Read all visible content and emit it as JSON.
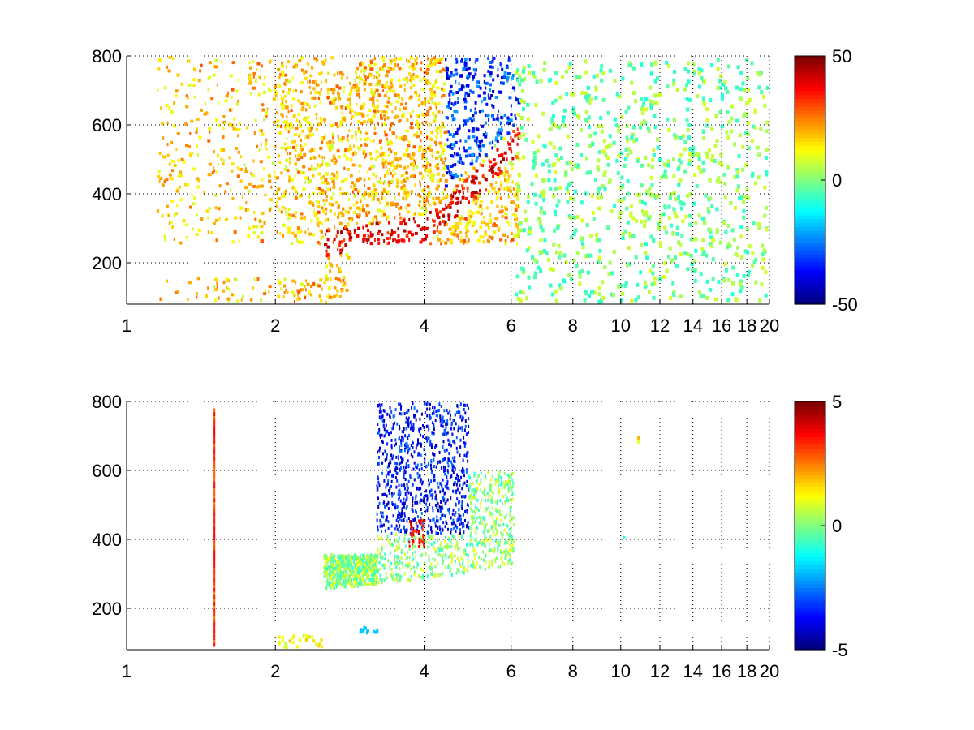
{
  "chart_data": [
    {
      "type": "heatmap",
      "title": "",
      "xlabel": "",
      "ylabel": "",
      "xlim": [
        1,
        20
      ],
      "ylim": [
        80,
        800
      ],
      "x_scale": "log",
      "xticks": [
        1,
        2,
        4,
        6,
        8,
        10,
        12,
        14,
        16,
        18,
        20
      ],
      "yticks": [
        200,
        400,
        600,
        800
      ],
      "grid": true,
      "colormap": "jet",
      "colorbar": {
        "min": -50,
        "max": 50,
        "ticks": [
          -50,
          0,
          50
        ]
      },
      "regions": [
        {
          "name": "",
          "x_center": 4.0,
          "y_center": 330,
          "value": 40
        },
        {
          "name": "",
          "x_center": 3.4,
          "y_center": 500,
          "value": 15
        },
        {
          "name": "",
          "x_center": 5.3,
          "y_center": 450,
          "value": -35
        },
        {
          "name": "",
          "x_center": 10.0,
          "y_center": 450,
          "value": 2
        }
      ]
    },
    {
      "type": "heatmap",
      "title": "",
      "xlabel": "",
      "ylabel": "",
      "xlim": [
        1,
        20
      ],
      "ylim": [
        80,
        800
      ],
      "x_scale": "log",
      "xticks": [
        1,
        2,
        4,
        6,
        8,
        10,
        12,
        14,
        16,
        18,
        20
      ],
      "yticks": [
        200,
        400,
        600,
        800
      ],
      "grid": true,
      "colormap": "jet",
      "colorbar": {
        "min": -5,
        "max": 5,
        "ticks": [
          -5,
          0,
          5
        ]
      },
      "regions": [
        {
          "name": "",
          "x_center": 4.0,
          "y_center": 600,
          "value": -4
        },
        {
          "name": "",
          "x_center": 4.3,
          "y_center": 330,
          "value": 0.5
        },
        {
          "name": "",
          "x_center": 3.8,
          "y_center": 420,
          "value": 3
        },
        {
          "name": "",
          "x_center": 10.8,
          "y_center": 690,
          "value": 2
        }
      ]
    }
  ]
}
